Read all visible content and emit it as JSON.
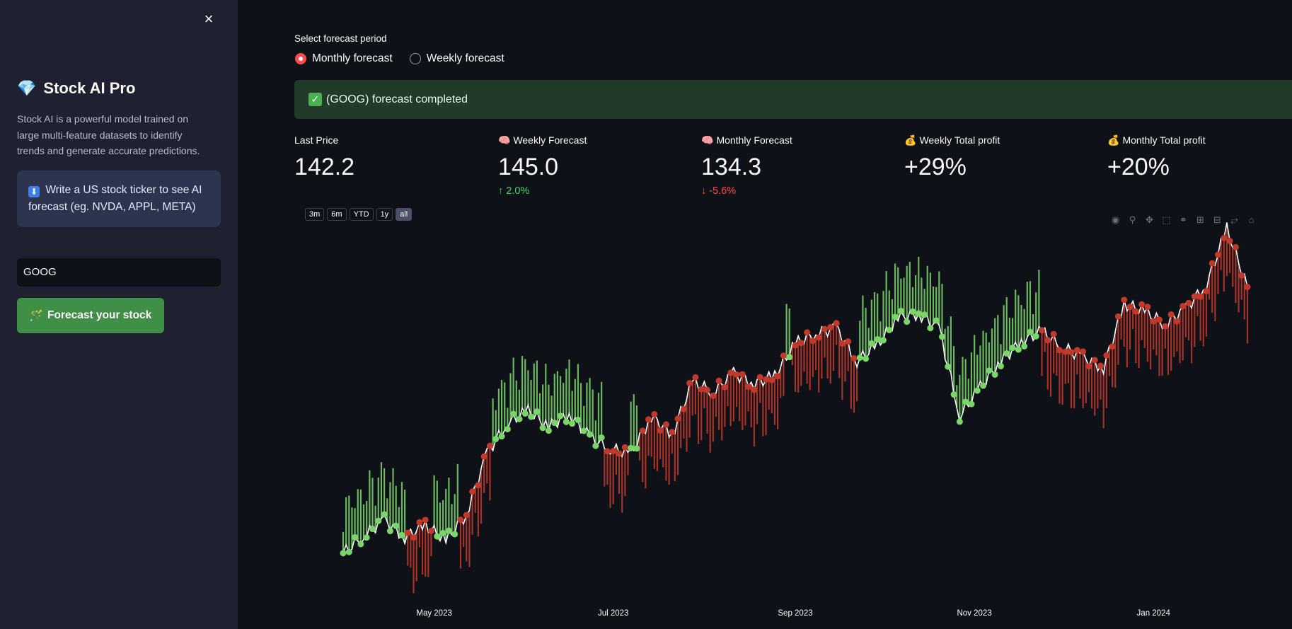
{
  "sidebar": {
    "close_icon": "×",
    "brand_icon": "gem-icon",
    "brand_title": "Stock AI Pro",
    "description": "Stock AI is a powerful model trained on large multi-feature datasets to identify trends and generate accurate predictions.",
    "info_icon": "⬇",
    "info_text": "Write a US stock ticker to see AI forecast (eg. NVDA, APPL, META)",
    "ticker_value": "GOOG",
    "button_label": "Forecast your stock",
    "button_icon": "magic-wand-icon"
  },
  "main": {
    "period_label": "Select forecast period",
    "period_options": [
      "Monthly forecast",
      "Weekly forecast"
    ],
    "period_selected": "Monthly forecast",
    "success_text": "(GOOG) forecast completed",
    "metrics": [
      {
        "label": "Last Price",
        "value": "142.2",
        "delta": "",
        "icon": ""
      },
      {
        "label": "Weekly Forecast",
        "value": "145.0",
        "delta": "2.0%",
        "direction": "up",
        "icon": "brain-icon"
      },
      {
        "label": "Monthly Forecast",
        "value": "134.3",
        "delta": "-5.6%",
        "direction": "down",
        "icon": "brain-icon"
      },
      {
        "label": "Weekly Total profit",
        "value": "+29%",
        "delta": "",
        "icon": "money-bag-icon"
      },
      {
        "label": "Monthly Total profit",
        "value": "+20%",
        "delta": "",
        "icon": "money-bag-icon"
      }
    ],
    "range_buttons": [
      "3m",
      "6m",
      "YTD",
      "1y",
      "all"
    ],
    "range_active": "all",
    "modebar_icons": [
      "camera-icon",
      "zoom-icon",
      "pan-icon",
      "box-select-icon",
      "lasso-icon",
      "zoom-in-icon",
      "zoom-out-icon",
      "autoscale-icon",
      "reset-home-icon"
    ]
  },
  "colors": {
    "accent": "#ff4b4b",
    "bullish": "#7bd66a",
    "bearish": "#c0392b",
    "price_line": "#ffffff",
    "success_bg": "#223a29",
    "button": "#3f8f47"
  },
  "chart_data": {
    "type": "line",
    "x_ticks": [
      "May 2023",
      "Jul 2023",
      "Sep 2023",
      "Nov 2023",
      "Jan 2024"
    ],
    "series": [
      {
        "x": [
          "2023-03-31",
          "2023-04-07",
          "2023-04-14",
          "2023-04-21",
          "2023-04-28",
          "2023-05-05",
          "2023-05-12",
          "2023-05-19",
          "2023-05-26",
          "2023-06-02",
          "2023-06-09",
          "2023-06-16",
          "2023-06-23",
          "2023-06-30",
          "2023-07-07",
          "2023-07-14",
          "2023-07-21",
          "2023-07-28",
          "2023-08-04",
          "2023-08-11",
          "2023-08-18",
          "2023-08-25",
          "2023-09-01",
          "2023-09-08",
          "2023-09-15",
          "2023-09-22",
          "2023-09-29",
          "2023-10-06",
          "2023-10-13",
          "2023-10-20",
          "2023-10-27",
          "2023-11-03",
          "2023-11-10",
          "2023-11-17",
          "2023-11-24",
          "2023-12-01",
          "2023-12-08",
          "2023-12-15",
          "2023-12-22",
          "2023-12-29",
          "2024-01-05",
          "2024-01-12",
          "2024-01-19",
          "2024-01-26",
          "2024-02-02"
        ],
        "values": [
          103.7,
          106.2,
          108.5,
          106.0,
          107.8,
          105.5,
          109.4,
          118.2,
          122.5,
          124.3,
          122.0,
          123.8,
          120.5,
          118.8,
          118.0,
          123.5,
          120.8,
          128.5,
          127.0,
          129.7,
          128.2,
          129.4,
          134.0,
          135.5,
          136.3,
          131.5,
          133.8,
          137.8,
          138.3,
          136.2,
          123.5,
          127.7,
          131.5,
          134.3,
          135.8,
          133.5,
          132.0,
          130.5,
          139.7,
          138.7,
          136.8,
          139.1,
          142.5,
          150.7,
          142.2
        ],
        "segments": "bullish/bearish coloring by forecast signal"
      }
    ]
  }
}
